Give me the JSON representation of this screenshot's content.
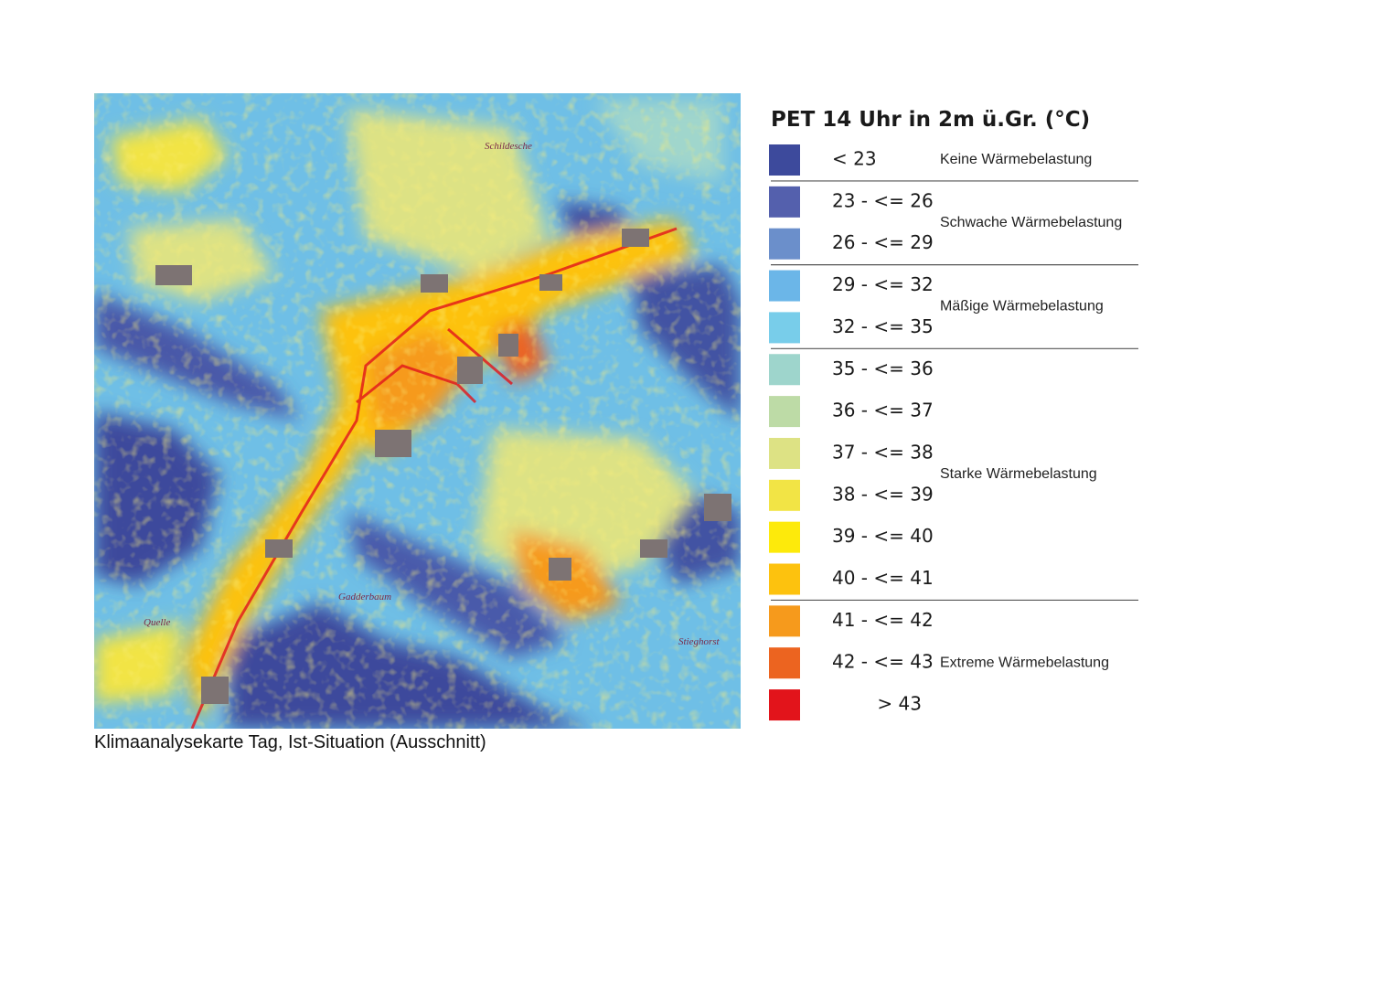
{
  "map": {
    "places": [
      "Schildesche",
      "Gadderbaum",
      "Quelle",
      "Stieghorst"
    ]
  },
  "caption": "Klimaanalysekarte Tag, Ist-Situation (Ausschnitt)",
  "legend": {
    "title": "PET 14 Uhr in 2m ü.Gr. (°C)",
    "items": [
      {
        "label": "< 23",
        "color": "#3d4a9c"
      },
      {
        "label": "23 - <= 26",
        "color": "#5460ad"
      },
      {
        "label": "26 - <= 29",
        "color": "#6b8fcb"
      },
      {
        "label": "29 - <= 32",
        "color": "#6bb6e8"
      },
      {
        "label": "32 - <= 35",
        "color": "#78cdea"
      },
      {
        "label": "35 - <= 36",
        "color": "#9ed5cc"
      },
      {
        "label": "36 - <= 37",
        "color": "#bddba6"
      },
      {
        "label": "37 - <= 38",
        "color": "#dde284"
      },
      {
        "label": "38 - <= 39",
        "color": "#f2e445"
      },
      {
        "label": "39 - <= 40",
        "color": "#fdea0b"
      },
      {
        "label": "40 - <= 41",
        "color": "#fdc20e"
      },
      {
        "label": "41 - <= 42",
        "color": "#f69a1c"
      },
      {
        "label": "42 - <= 43",
        "color": "#ec6420"
      },
      {
        "label": "> 43",
        "color": "#e2141b"
      }
    ],
    "groups": [
      "Keine Wärmebelastung",
      "Schwache Wärmebelastung",
      "Mäßige Wärmebelastung",
      "Starke Wärmebelastung",
      "Extreme Wärmebelastung"
    ]
  }
}
